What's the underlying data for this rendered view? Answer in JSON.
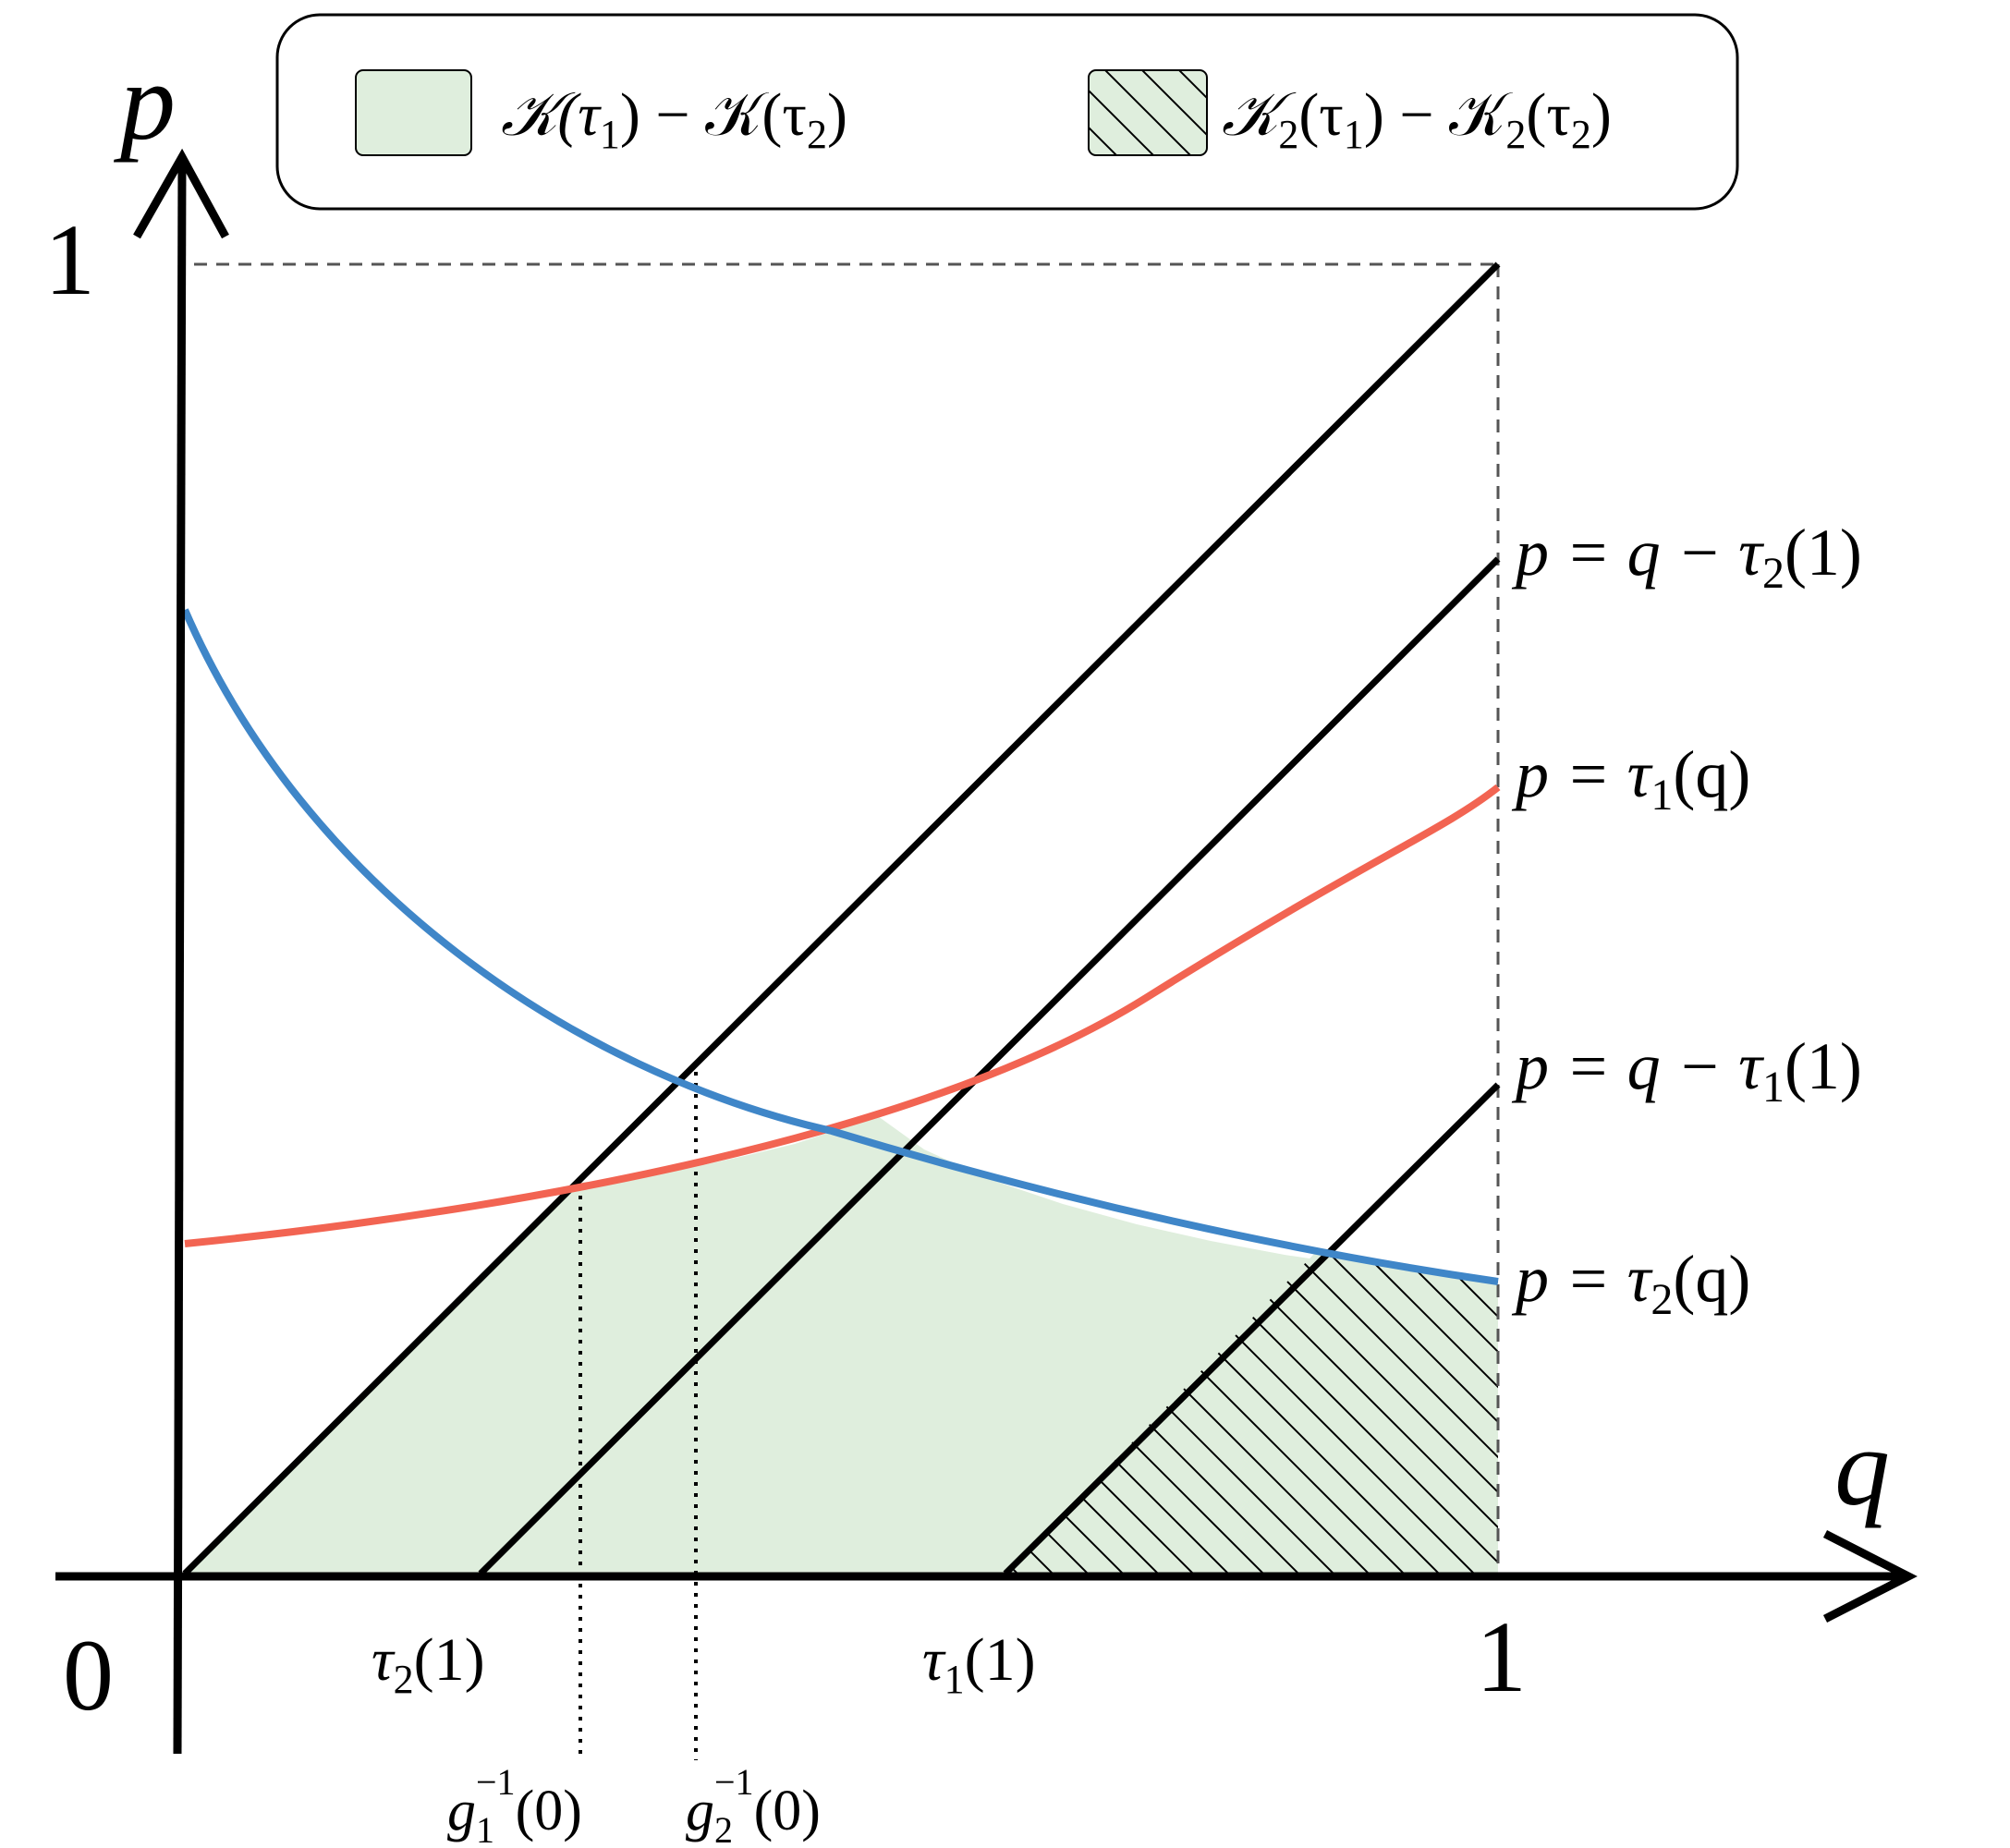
{
  "axes": {
    "x_label": "q",
    "y_label": "p",
    "origin_label": "0",
    "x_one_label": "1",
    "y_one_label": "1"
  },
  "legend": {
    "entry1": {
      "pre": "𝒦(τ",
      "sub1": "1",
      "mid": ") − 𝒦(τ",
      "sub2": "2",
      "post": ")"
    },
    "entry2": {
      "pre": "𝒦",
      "sub0": "2",
      "a": "(τ",
      "sub1": "1",
      "mid": ") − 𝒦",
      "sub0b": "2",
      "b": "(τ",
      "sub2": "2",
      "post": ")"
    }
  },
  "curve_labels": {
    "diag2": {
      "pre": "p = q − τ",
      "sub": "2",
      "post": "(1)"
    },
    "tau1": {
      "pre": "p = τ",
      "sub": "1",
      "post": "(q)"
    },
    "diag1": {
      "pre": "p = q − τ",
      "sub": "1",
      "post": "(1)"
    },
    "tau2": {
      "pre": "p = τ",
      "sub": "2",
      "post": "(q)"
    }
  },
  "tick_labels": {
    "tau2_1": {
      "pre": "τ",
      "sub": "2",
      "post": "(1)"
    },
    "tau1_1": {
      "pre": "τ",
      "sub": "1",
      "post": "(1)"
    },
    "g1": {
      "pre": "g",
      "sub": "1",
      "sup": "−1",
      "post": "(0)"
    },
    "g2": {
      "pre": "g",
      "sub": "2",
      "sup": "−1",
      "post": "(0)"
    }
  },
  "colors": {
    "fill_green": "#dfeedd",
    "tau1_curve": "#f26452",
    "tau2_curve": "#3f86c8",
    "lines": "#000000",
    "dashed": "#555555"
  }
}
